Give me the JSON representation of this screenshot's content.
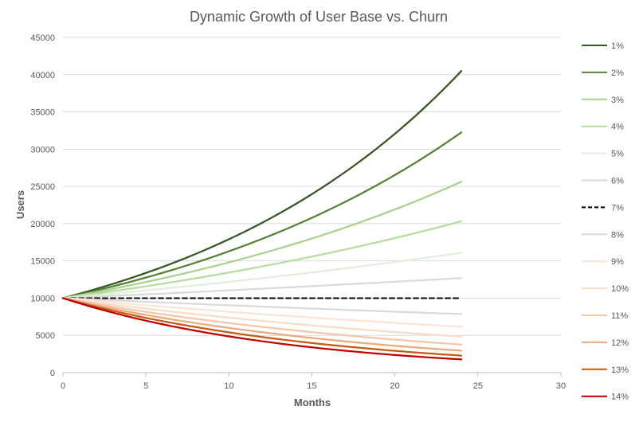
{
  "chart_data": {
    "type": "line",
    "title": "Dynamic Growth of User Base vs. Churn",
    "xlabel": "Months",
    "ylabel": "Users",
    "xlim": [
      0,
      30
    ],
    "ylim": [
      0,
      45000
    ],
    "x_ticks": [
      0,
      5,
      10,
      15,
      20,
      25,
      30
    ],
    "y_ticks": [
      0,
      5000,
      10000,
      15000,
      20000,
      25000,
      30000,
      35000,
      40000,
      45000
    ],
    "grid": "horizontal",
    "legend_position": "right",
    "x": [
      0,
      24
    ],
    "growth_rate": 0.07,
    "initial_users": 10000,
    "series": [
      {
        "name": "1%",
        "values": [
          10000,
          40489
        ],
        "color": "#375623",
        "dash": false
      },
      {
        "name": "2%",
        "values": [
          10000,
          32251
        ],
        "color": "#548235",
        "dash": false
      },
      {
        "name": "3%",
        "values": [
          10000,
          25633
        ],
        "color": "#A9D08E",
        "dash": false
      },
      {
        "name": "4%",
        "values": [
          10000,
          20328
        ],
        "color": "#B5DDA1",
        "dash": false
      },
      {
        "name": "5%",
        "values": [
          10000,
          16084
        ],
        "color": "#E2EFDA",
        "dash": false
      },
      {
        "name": "6%",
        "values": [
          10000,
          12697
        ],
        "color": "#D9D9D9",
        "dash": false
      },
      {
        "name": "7%",
        "values": [
          10000,
          10000
        ],
        "color": "#000000",
        "dash": true
      },
      {
        "name": "8%",
        "values": [
          10000,
          7861
        ],
        "color": "#D9D9D9",
        "dash": false
      },
      {
        "name": "9%",
        "values": [
          10000,
          6166
        ],
        "color": "#FCE4D6",
        "dash": false
      },
      {
        "name": "10%",
        "values": [
          10000,
          4827
        ],
        "color": "#F8DCC8",
        "dash": false
      },
      {
        "name": "11%",
        "values": [
          10000,
          3770
        ],
        "color": "#F4C7A8",
        "dash": false
      },
      {
        "name": "12%",
        "values": [
          10000,
          2940
        ],
        "color": "#EBA981",
        "dash": false
      },
      {
        "name": "13%",
        "values": [
          10000,
          2288
        ],
        "color": "#C55A11",
        "dash": false
      },
      {
        "name": "14%",
        "values": [
          10000,
          1776
        ],
        "color": "#C00000",
        "dash": false
      }
    ]
  }
}
